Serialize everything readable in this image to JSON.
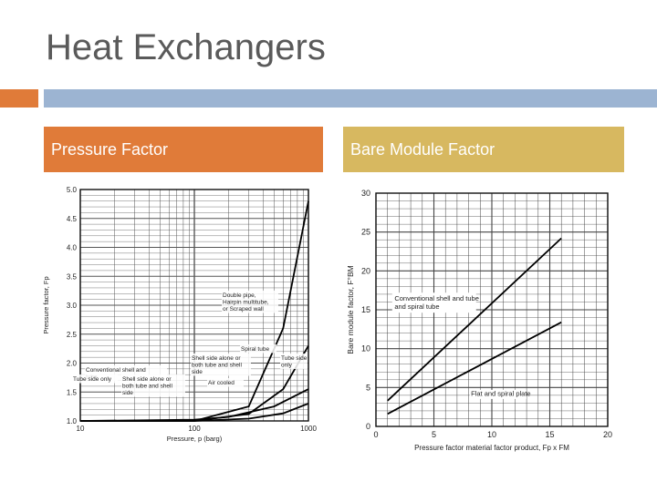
{
  "slide": {
    "title": "Heat Exchangers",
    "left_header": "Pressure Factor",
    "right_header": "Bare Module Factor",
    "colors": {
      "accent_orange": "#e07b39",
      "accent_blue": "#9cb4d2",
      "accent_gold": "#d7b860"
    }
  },
  "chart_data": [
    {
      "type": "line",
      "xlabel": "Pressure, p (barg)",
      "ylabel": "Pressure factor, Fp",
      "xscale": "log",
      "xlim": [
        10,
        1000
      ],
      "ylim": [
        1.0,
        5.0
      ],
      "x_ticks": [
        "10",
        "100",
        "1000"
      ],
      "y_ticks": [
        "1.0",
        "1.5",
        "2.0",
        "2.5",
        "3.0",
        "3.5",
        "4.0",
        "4.5",
        "5.0"
      ],
      "grid": true,
      "series": [
        {
          "name": "Spiral tube",
          "x": [
            10,
            100,
            300,
            600,
            1000
          ],
          "y": [
            1.0,
            1.0,
            1.25,
            2.6,
            4.8
          ]
        },
        {
          "name": "Double pipe, Hairpin multitube, or Scraped wall",
          "x": [
            10,
            100,
            300,
            600,
            1000
          ],
          "y": [
            1.0,
            1.0,
            1.12,
            1.55,
            2.3
          ]
        },
        {
          "name": "Shell side alone or both tube and shell side",
          "x": [
            10,
            100,
            200,
            500,
            1000
          ],
          "y": [
            1.0,
            1.02,
            1.07,
            1.25,
            1.55
          ]
        },
        {
          "name": "Tube side only",
          "x": [
            10,
            100,
            300,
            600,
            1000
          ],
          "y": [
            1.0,
            1.0,
            1.04,
            1.13,
            1.3
          ]
        }
      ],
      "annotations": [
        "Double pipe, Hairpin multitube, or Scraped wall",
        "Spiral tube",
        "Shell side alone or both tube and shell side",
        "Tube side only",
        "Conventional shell and tube",
        "Tube side only",
        "Shell side alone or both tube and shell side",
        "Air cooled"
      ]
    },
    {
      "type": "line",
      "xlabel": "Pressure factor material factor product, Fp x FM",
      "ylabel": "Bare module factor, F°BM",
      "xlim": [
        0,
        20
      ],
      "ylim": [
        0,
        30
      ],
      "x_ticks": [
        "0",
        "5",
        "10",
        "15",
        "20"
      ],
      "y_ticks": [
        "0",
        "5",
        "10",
        "15",
        "20",
        "25",
        "30"
      ],
      "grid": true,
      "series": [
        {
          "name": "Conventional shell and tube and spiral tube",
          "x": [
            1,
            16
          ],
          "y": [
            3.3,
            24.2
          ]
        },
        {
          "name": "Flat and spiral plate",
          "x": [
            1,
            16
          ],
          "y": [
            1.6,
            13.4
          ]
        }
      ],
      "annotations": [
        "Conventional shell and tube and spiral tube",
        "Flat and spiral plate"
      ]
    }
  ]
}
